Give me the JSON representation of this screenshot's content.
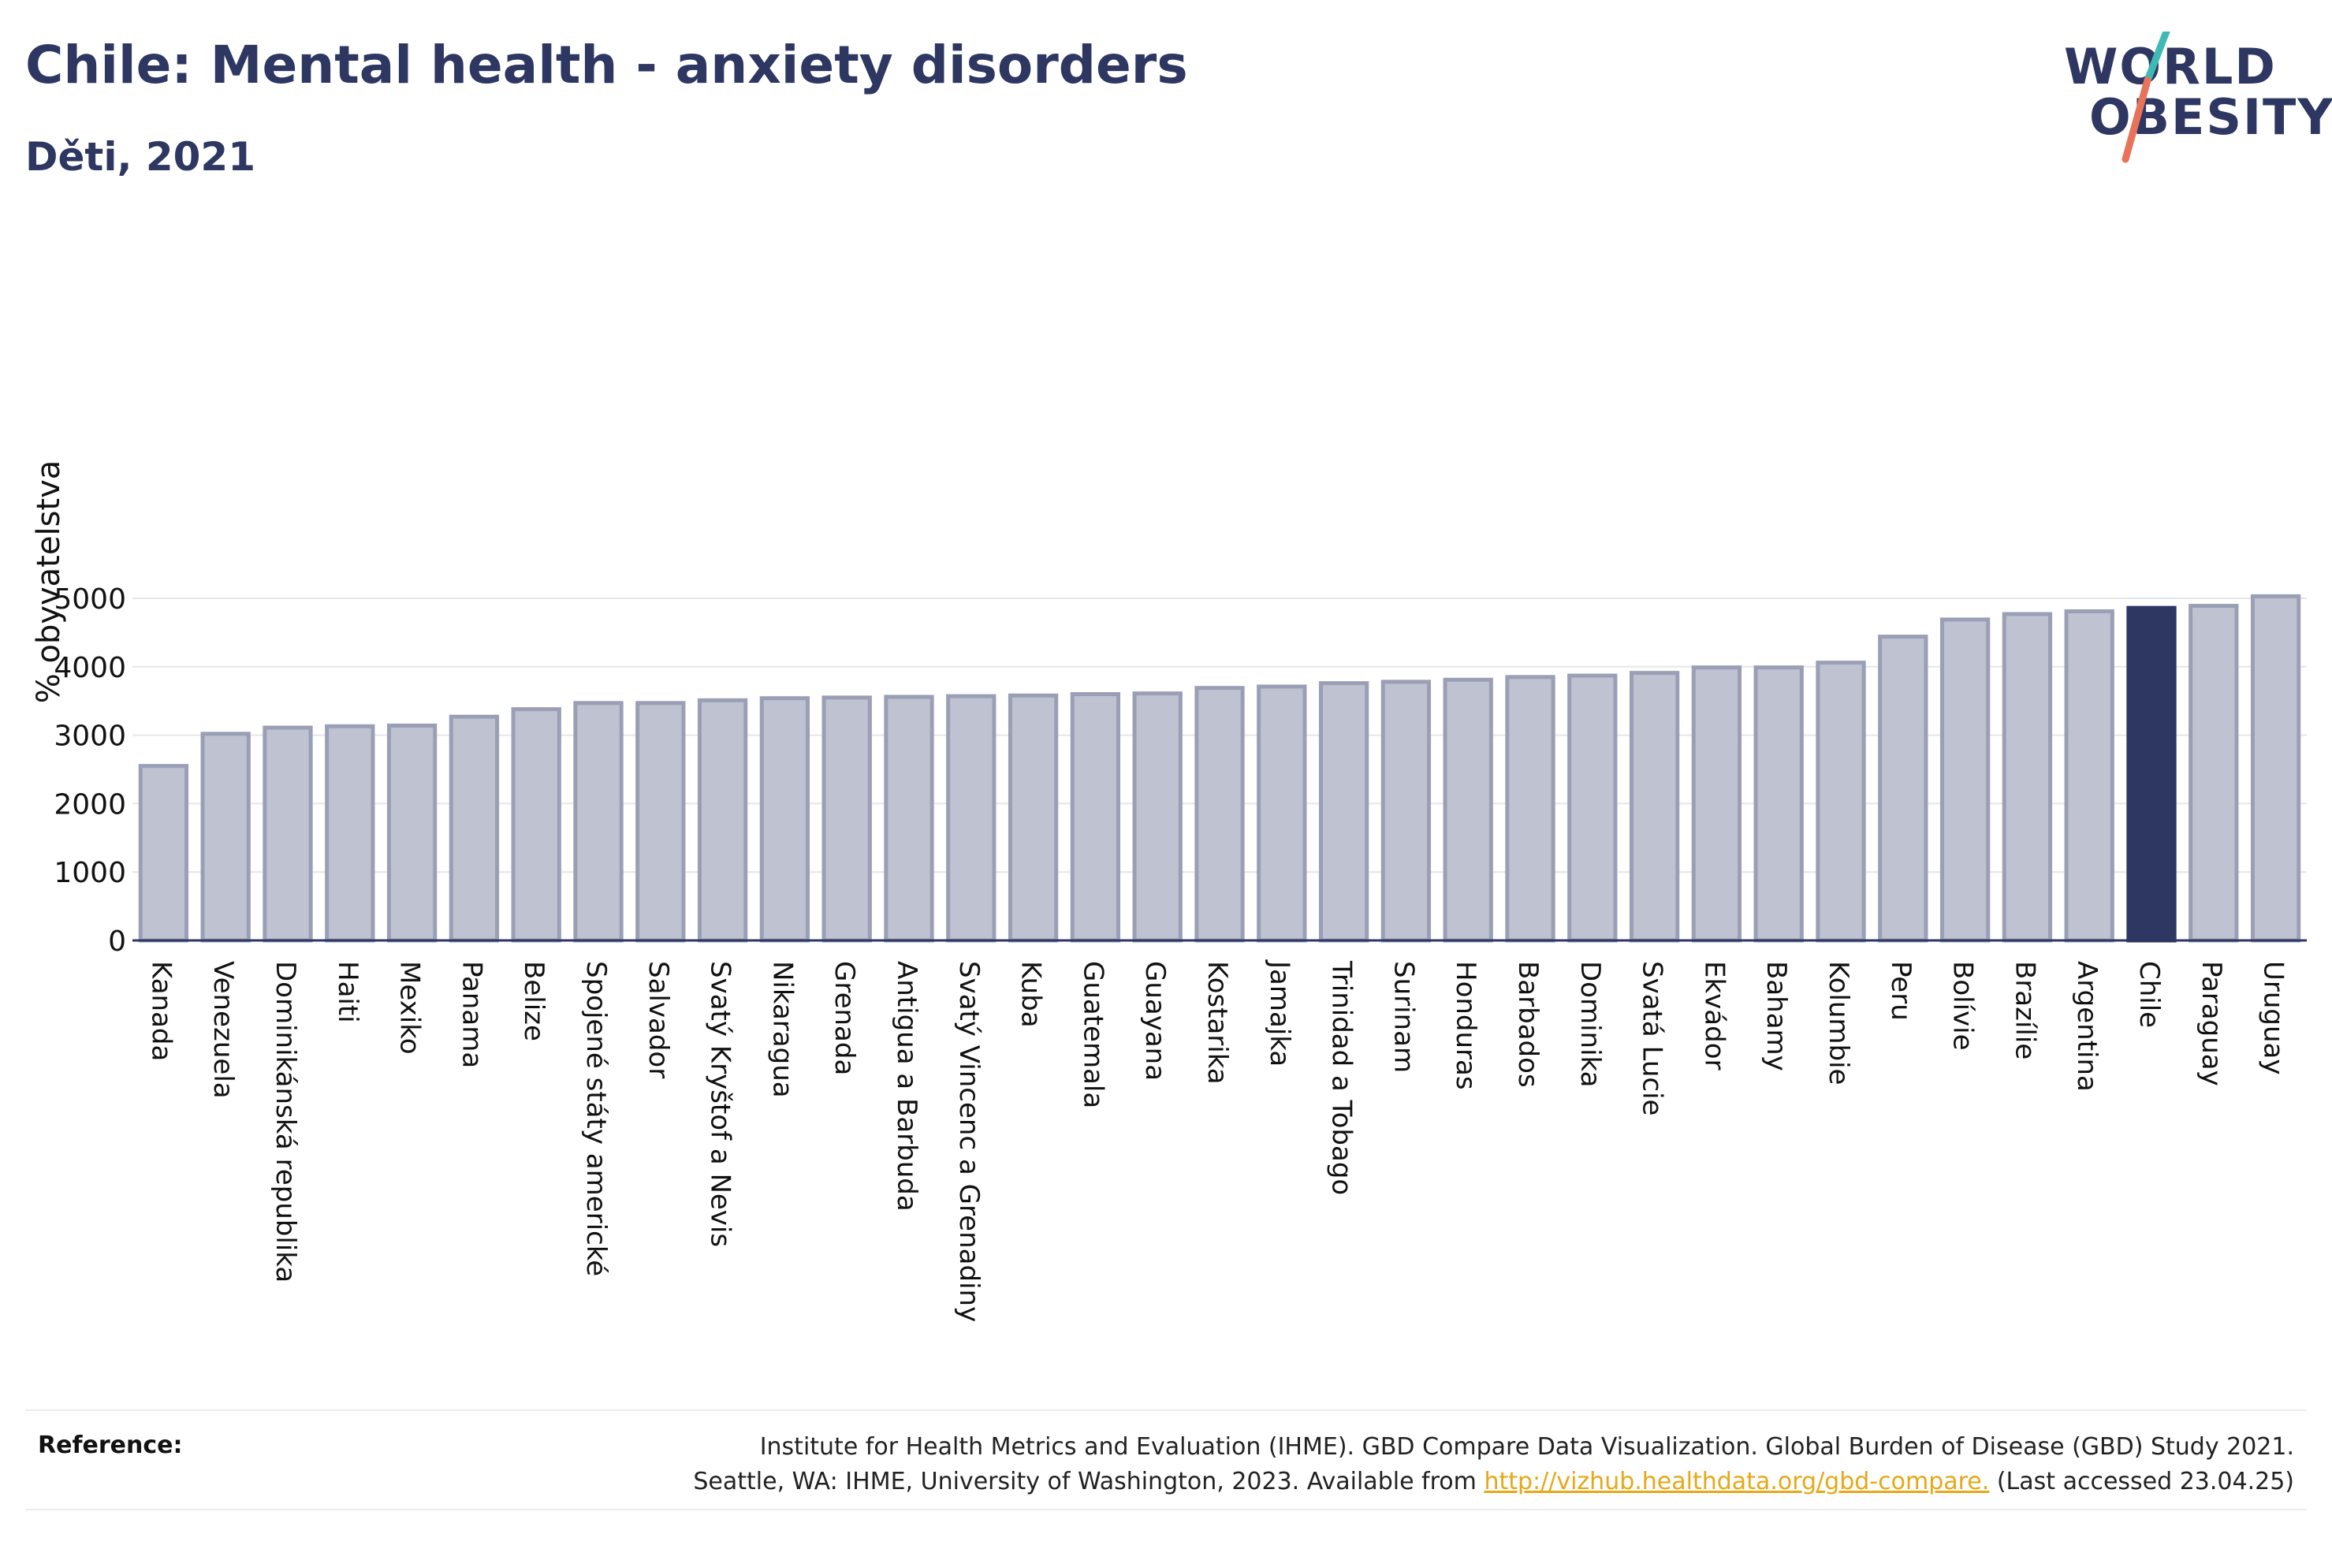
{
  "header": {
    "title": "Chile: Mental health - anxiety disorders",
    "subtitle": "Děti, 2021"
  },
  "logo": {
    "line1": "WORLD",
    "line2": "OBESITY",
    "accent_colors": [
      "#3fb9b4",
      "#e8735a"
    ]
  },
  "chart_data": {
    "type": "bar",
    "title": "Chile: Mental health - anxiety disorders",
    "subtitle": "Děti, 2021",
    "ylabel": "% obyvatelstva",
    "xlabel": "",
    "ylim": [
      0,
      5200
    ],
    "yticks": [
      0,
      1000,
      2000,
      3000,
      4000,
      5000
    ],
    "grid": true,
    "highlight": "Chile",
    "colors": {
      "bar": "#bfc2d0",
      "bar_edge": "#9a9fb6",
      "highlight": "#2d3761"
    },
    "categories": [
      "Kanada",
      "Venezuela",
      "Dominikánská republika",
      "Haiti",
      "Mexiko",
      "Panama",
      "Belize",
      "Spojené státy americké",
      "Salvador",
      "Svatý Kryštof a Nevis",
      "Nikaragua",
      "Grenada",
      "Antigua a Barbuda",
      "Svatý Vincenc a Grenadiny",
      "Kuba",
      "Guatemala",
      "Guayana",
      "Kostarika",
      "Jamajka",
      "Trinidad a Tobago",
      "Surinam",
      "Honduras",
      "Barbados",
      "Dominika",
      "Svatá Lucie",
      "Ekvádor",
      "Bahamy",
      "Kolumbie",
      "Peru",
      "Bolívie",
      "Brazílie",
      "Argentina",
      "Chile",
      "Paraguay",
      "Uruguay"
    ],
    "values": [
      2550,
      3020,
      3110,
      3130,
      3140,
      3270,
      3380,
      3470,
      3470,
      3510,
      3540,
      3550,
      3560,
      3570,
      3580,
      3600,
      3610,
      3690,
      3710,
      3760,
      3780,
      3810,
      3850,
      3870,
      3910,
      3990,
      3990,
      4060,
      4440,
      4690,
      4770,
      4810,
      4860,
      4890,
      5030
    ]
  },
  "footer": {
    "reference_label": "Reference:",
    "reference_line1": "Institute for Health Metrics and Evaluation (IHME). GBD Compare Data Visualization. Global Burden of Disease (GBD) Study 2021.",
    "reference_line2_prefix": "Seattle, WA: IHME, University of Washington, 2023. Available from",
    "reference_link": "http://vizhub.healthdata.org/gbd-compare.",
    "reference_line2_suffix": "(Last accessed 23.04.25)"
  }
}
